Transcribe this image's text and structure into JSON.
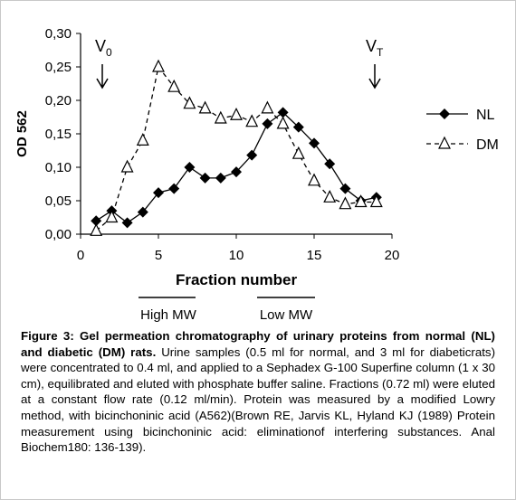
{
  "chart_data": {
    "type": "line",
    "x_label": "Fraction number",
    "y_label": "OD 562",
    "xlim": [
      0,
      20
    ],
    "xticks": [
      0,
      5,
      10,
      15,
      20
    ],
    "ylim": [
      0,
      0.3
    ],
    "yticks": [
      {
        "value": 0,
        "label": "0,00"
      },
      {
        "value": 0.05,
        "label": "0,05"
      },
      {
        "value": 0.1,
        "label": "0,10"
      },
      {
        "value": 0.15,
        "label": "0,15"
      },
      {
        "value": 0.2,
        "label": "0,20"
      },
      {
        "value": 0.25,
        "label": "0,25"
      },
      {
        "value": 0.3,
        "label": "0,30"
      }
    ],
    "x": [
      1,
      2,
      3,
      4,
      5,
      6,
      7,
      8,
      9,
      10,
      11,
      12,
      13,
      14,
      15,
      16,
      17,
      18,
      19
    ],
    "series": [
      {
        "name": "NL",
        "color": "#000000",
        "marker": "diamond",
        "dashed": false,
        "values": [
          0.02,
          0.035,
          0.017,
          0.033,
          0.062,
          0.068,
          0.1,
          0.084,
          0.084,
          0.093,
          0.118,
          0.165,
          0.182,
          0.16,
          0.136,
          0.105,
          0.068,
          0.05,
          0.055
        ]
      },
      {
        "name": "DM",
        "color": "#000000",
        "marker": "triangle",
        "dashed": true,
        "values": [
          0.005,
          0.025,
          0.1,
          0.14,
          0.25,
          0.22,
          0.195,
          0.188,
          0.173,
          0.178,
          0.168,
          0.188,
          0.165,
          0.12,
          0.08,
          0.055,
          0.045,
          0.048,
          0.048
        ]
      }
    ],
    "legend": "right",
    "annotations": [
      {
        "text": "V",
        "sub": "0"
      },
      {
        "text": "V",
        "sub": "T"
      }
    ],
    "ranges": [
      "High MW",
      "Low MW"
    ]
  },
  "caption": {
    "bold": "Figure 3: Gel permeation chromatography of urinary proteins from normal (NL) and diabetic (DM) rats.",
    "text": "Urine samples (0.5 ml for normal, and 3 ml for diabeticrats) were concentrated to 0.4 ml, and applied to a Sephadex G-100 Superfine column (1 x 30 cm), equilibrated and eluted with phosphate buffer saline. Fractions (0.72 ml) were eluted at a constant flow rate (0.12 ml/min). Protein was measured by a modified Lowry method, with bicinchoninic acid (A562)(Brown RE, Jarvis KL, Hyland KJ (1989) Protein measurement using bicinchoninic acid: eliminationof interfering substances. Anal Biochem180: 136-139)."
  }
}
